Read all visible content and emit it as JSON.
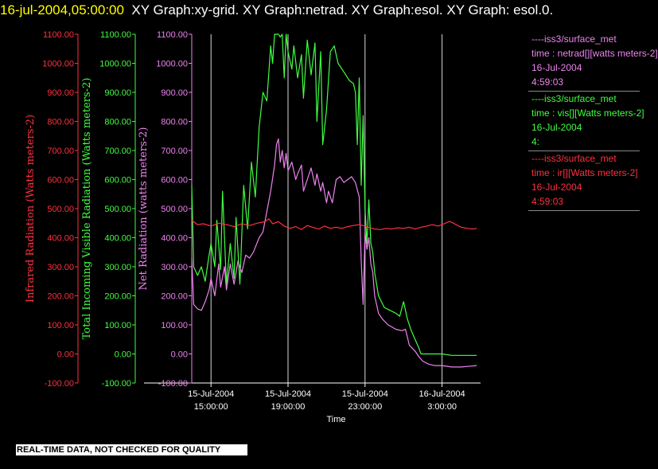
{
  "title": {
    "timestamp": "16-jul-2004,05:00:00",
    "text": "XY Graph:xy-grid.  XY Graph:netrad.  XY Graph:esol.  XY Graph: esol.0."
  },
  "colors": {
    "background": "#000000",
    "net": "#ee82ee",
    "visible": "#40ff40",
    "infrared": "#ff3040",
    "axis": "#ffffff",
    "grid": "#cccccc",
    "timestamp": "#ffff00"
  },
  "legend": [
    {
      "source": "----iss3/surface_met",
      "desc": "time : netrad[][watts meters-2]",
      "date": "16-Jul-2004",
      "time": "4:59:03",
      "color": "#ee82ee"
    },
    {
      "source": "----iss3/surface_met",
      "desc": "time : vis[][Watts meters-2]",
      "date": "16-Jul-2004",
      "time": "4:",
      "color": "#40ff40"
    },
    {
      "source": "----iss3/surface_met",
      "desc": "time : ir[][Watts meters-2]",
      "date": "16-Jul-2004",
      "time": "4:59:03",
      "color": "#ff3040"
    }
  ],
  "notice": "REAL-TIME DATA, NOT CHECKED FOR QUALITY",
  "chart_data": {
    "type": "line",
    "xlabel": "Time",
    "x_ticks": [
      {
        "hours": 15,
        "date": "15-Jul-2004",
        "time": "15:00:00"
      },
      {
        "hours": 19,
        "date": "15-Jul-2004",
        "time": "19:00:00"
      },
      {
        "hours": 23,
        "date": "15-Jul-2004",
        "time": "23:00:00"
      },
      {
        "hours": 27,
        "date": "16-Jul-2004",
        "time": "3:00:00"
      }
    ],
    "xlim_hours": [
      14.0,
      29.0
    ],
    "ylim": [
      -100,
      1100
    ],
    "y_ticks": [
      "-100.00",
      "0.00",
      "100.00",
      "200.00",
      "300.00",
      "400.00",
      "500.00",
      "600.00",
      "700.00",
      "800.00",
      "900.00",
      "1000.00",
      "1100.00"
    ],
    "axes": [
      {
        "label": "Infrared Radiation (Watts meters-2)",
        "color": "#ff3040"
      },
      {
        "label": "Total Incoming Visible Radiation (Watts meters-2)",
        "color": "#40ff40"
      },
      {
        "label": "Net Radiation (watts meters-2)",
        "color": "#ee82ee"
      }
    ],
    "grid": "vertical",
    "series": [
      {
        "name": "time : netrad[][watts meters-2]",
        "color": "#ee82ee",
        "points": [
          [
            14.0,
            330
          ],
          [
            14.1,
            170
          ],
          [
            14.3,
            155
          ],
          [
            14.5,
            150
          ],
          [
            14.7,
            180
          ],
          [
            14.9,
            220
          ],
          [
            15.0,
            260
          ],
          [
            15.2,
            200
          ],
          [
            15.4,
            310
          ],
          [
            15.5,
            230
          ],
          [
            15.7,
            300
          ],
          [
            15.8,
            220
          ],
          [
            16.0,
            310
          ],
          [
            16.2,
            240
          ],
          [
            16.4,
            320
          ],
          [
            16.6,
            280
          ],
          [
            16.8,
            340
          ],
          [
            17.0,
            330
          ],
          [
            17.2,
            350
          ],
          [
            17.5,
            400
          ],
          [
            17.7,
            420
          ],
          [
            17.9,
            490
          ],
          [
            18.1,
            560
          ],
          [
            18.3,
            650
          ],
          [
            18.4,
            720
          ],
          [
            18.5,
            740
          ],
          [
            18.6,
            660
          ],
          [
            18.7,
            700
          ],
          [
            18.8,
            640
          ],
          [
            18.9,
            690
          ],
          [
            19.0,
            630
          ],
          [
            19.2,
            660
          ],
          [
            19.4,
            600
          ],
          [
            19.5,
            620
          ],
          [
            19.7,
            650
          ],
          [
            19.8,
            560
          ],
          [
            20.0,
            600
          ],
          [
            20.2,
            640
          ],
          [
            20.4,
            580
          ],
          [
            20.5,
            620
          ],
          [
            20.7,
            560
          ],
          [
            20.8,
            590
          ],
          [
            21.0,
            520
          ],
          [
            21.1,
            560
          ],
          [
            21.3,
            520
          ],
          [
            21.5,
            600
          ],
          [
            21.7,
            610
          ],
          [
            21.9,
            590
          ],
          [
            22.1,
            600
          ],
          [
            22.3,
            610
          ],
          [
            22.5,
            590
          ],
          [
            22.7,
            540
          ],
          [
            22.8,
            320
          ],
          [
            22.9,
            170
          ],
          [
            23.0,
            420
          ],
          [
            23.1,
            360
          ],
          [
            23.2,
            400
          ],
          [
            23.3,
            310
          ],
          [
            23.4,
            280
          ],
          [
            23.5,
            200
          ],
          [
            23.7,
            140
          ],
          [
            23.9,
            120
          ],
          [
            24.2,
            100
          ],
          [
            24.6,
            85
          ],
          [
            24.9,
            80
          ],
          [
            25.1,
            85
          ],
          [
            25.3,
            30
          ],
          [
            25.6,
            10
          ],
          [
            25.8,
            -10
          ],
          [
            26.0,
            -25
          ],
          [
            26.3,
            -35
          ],
          [
            26.6,
            -40
          ],
          [
            27.0,
            -40
          ],
          [
            27.5,
            -45
          ],
          [
            28.0,
            -45
          ],
          [
            28.5,
            -42
          ],
          [
            28.8,
            -40
          ]
        ]
      },
      {
        "name": "time : vis[][Watts meters-2]",
        "color": "#40ff40",
        "points": [
          [
            14.0,
            580
          ],
          [
            14.1,
            300
          ],
          [
            14.3,
            270
          ],
          [
            14.5,
            300
          ],
          [
            14.7,
            250
          ],
          [
            14.9,
            340
          ],
          [
            15.0,
            380
          ],
          [
            15.2,
            300
          ],
          [
            15.3,
            460
          ],
          [
            15.5,
            290
          ],
          [
            15.6,
            560
          ],
          [
            15.8,
            240
          ],
          [
            16.0,
            380
          ],
          [
            16.2,
            260
          ],
          [
            16.3,
            470
          ],
          [
            16.5,
            240
          ],
          [
            16.7,
            580
          ],
          [
            16.9,
            430
          ],
          [
            17.1,
            660
          ],
          [
            17.3,
            540
          ],
          [
            17.5,
            780
          ],
          [
            17.7,
            900
          ],
          [
            17.9,
            870
          ],
          [
            18.1,
            1060
          ],
          [
            18.2,
            1000
          ],
          [
            18.3,
            1100
          ],
          [
            18.5,
            1100
          ],
          [
            18.6,
            1090
          ],
          [
            18.7,
            1100
          ],
          [
            18.8,
            950
          ],
          [
            18.9,
            1100
          ],
          [
            19.0,
            1040
          ],
          [
            19.2,
            980
          ],
          [
            19.3,
            1060
          ],
          [
            19.5,
            950
          ],
          [
            19.7,
            1030
          ],
          [
            19.8,
            880
          ],
          [
            20.0,
            1080
          ],
          [
            20.2,
            960
          ],
          [
            20.4,
            1070
          ],
          [
            20.5,
            800
          ],
          [
            20.7,
            1040
          ],
          [
            20.8,
            720
          ],
          [
            21.0,
            840
          ],
          [
            21.2,
            1040
          ],
          [
            21.4,
            1060
          ],
          [
            21.6,
            1000
          ],
          [
            21.8,
            980
          ],
          [
            22.0,
            960
          ],
          [
            22.2,
            940
          ],
          [
            22.4,
            930
          ],
          [
            22.5,
            900
          ],
          [
            22.6,
            720
          ],
          [
            22.7,
            950
          ],
          [
            22.8,
            580
          ],
          [
            22.9,
            820
          ],
          [
            23.0,
            500
          ],
          [
            23.1,
            380
          ],
          [
            23.2,
            530
          ],
          [
            23.3,
            380
          ],
          [
            23.4,
            350
          ],
          [
            23.5,
            280
          ],
          [
            23.7,
            200
          ],
          [
            24.0,
            160
          ],
          [
            24.3,
            150
          ],
          [
            24.6,
            140
          ],
          [
            24.8,
            130
          ],
          [
            25.0,
            180
          ],
          [
            25.2,
            120
          ],
          [
            25.4,
            80
          ],
          [
            25.6,
            50
          ],
          [
            25.8,
            20
          ],
          [
            25.9,
            0
          ],
          [
            26.5,
            0
          ],
          [
            27.0,
            0
          ],
          [
            27.5,
            -5
          ],
          [
            28.0,
            -5
          ],
          [
            28.5,
            -5
          ],
          [
            28.8,
            -5
          ]
        ]
      },
      {
        "name": "time : ir[][Watts meters-2]",
        "color": "#ff3040",
        "points": [
          [
            14.0,
            460
          ],
          [
            14.3,
            445
          ],
          [
            14.6,
            448
          ],
          [
            15.0,
            440
          ],
          [
            15.4,
            450
          ],
          [
            15.8,
            445
          ],
          [
            16.2,
            438
          ],
          [
            16.6,
            448
          ],
          [
            17.0,
            442
          ],
          [
            17.4,
            450
          ],
          [
            17.8,
            455
          ],
          [
            18.0,
            465
          ],
          [
            18.2,
            448
          ],
          [
            18.5,
            455
          ],
          [
            18.8,
            440
          ],
          [
            19.1,
            432
          ],
          [
            19.4,
            438
          ],
          [
            19.7,
            428
          ],
          [
            20.0,
            442
          ],
          [
            20.3,
            435
          ],
          [
            20.6,
            430
          ],
          [
            20.9,
            440
          ],
          [
            21.2,
            432
          ],
          [
            21.5,
            436
          ],
          [
            21.8,
            432
          ],
          [
            22.1,
            438
          ],
          [
            22.4,
            442
          ],
          [
            22.7,
            445
          ],
          [
            23.0,
            440
          ],
          [
            23.2,
            435
          ],
          [
            23.5,
            430
          ],
          [
            23.8,
            428
          ],
          [
            24.1,
            432
          ],
          [
            24.4,
            430
          ],
          [
            24.7,
            434
          ],
          [
            25.0,
            432
          ],
          [
            25.3,
            436
          ],
          [
            25.6,
            430
          ],
          [
            25.9,
            436
          ],
          [
            26.2,
            440
          ],
          [
            26.5,
            445
          ],
          [
            26.8,
            440
          ],
          [
            27.1,
            448
          ],
          [
            27.4,
            456
          ],
          [
            27.6,
            450
          ],
          [
            27.8,
            442
          ],
          [
            28.0,
            436
          ],
          [
            28.3,
            432
          ],
          [
            28.6,
            430
          ],
          [
            28.8,
            432
          ]
        ]
      }
    ]
  }
}
